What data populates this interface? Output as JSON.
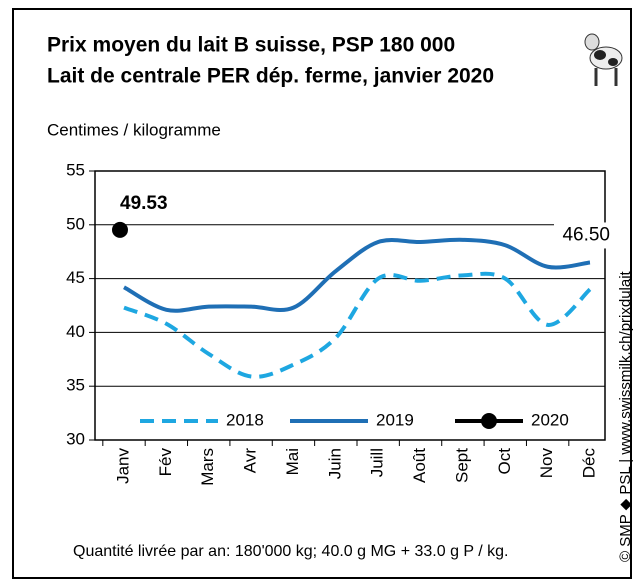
{
  "chart_data": {
    "type": "line",
    "title": "Prix moyen du lait B suisse, PSP 180 000",
    "subtitle": "Lait de centrale PER dép. ferme, janvier 2020",
    "ylabel": "Centimes / kilogramme",
    "note": "Quantité livrée par an: 180'000 kg; 40.0 g MG + 33.0 g P / kg.",
    "source": "© SMP ◆ PSL | www.swissmilk.ch/prixdulait",
    "categories": [
      "Janv",
      "Fév",
      "Mars",
      "Avr",
      "Mai",
      "Juin",
      "Juill",
      "Août",
      "Sept",
      "Oct",
      "Nov",
      "Déc"
    ],
    "series": [
      {
        "name": "2018",
        "color": "#1ea7e1",
        "dashed": true,
        "values": [
          42.3,
          40.8,
          38.0,
          35.9,
          37.0,
          39.5,
          45.0,
          44.8,
          45.3,
          45.0,
          40.7,
          44.0
        ]
      },
      {
        "name": "2019",
        "color": "#1f6fb5",
        "dashed": false,
        "values": [
          44.2,
          42.1,
          42.4,
          42.4,
          42.3,
          45.7,
          48.4,
          48.4,
          48.6,
          48.1,
          46.1,
          46.5
        ],
        "value_labels": [
          null,
          null,
          null,
          null,
          null,
          null,
          null,
          null,
          null,
          null,
          null,
          "46.50"
        ]
      },
      {
        "name": "2020",
        "color": "#000000",
        "dashed": false,
        "marker": "circle",
        "values": [
          49.53,
          null,
          null,
          null,
          null,
          null,
          null,
          null,
          null,
          null,
          null,
          null
        ],
        "value_labels": [
          "49.53",
          null,
          null,
          null,
          null,
          null,
          null,
          null,
          null,
          null,
          null,
          null
        ]
      }
    ],
    "ylim": [
      30,
      55
    ],
    "yticks": [
      30,
      35,
      40,
      45,
      50,
      55
    ],
    "grid": true
  }
}
